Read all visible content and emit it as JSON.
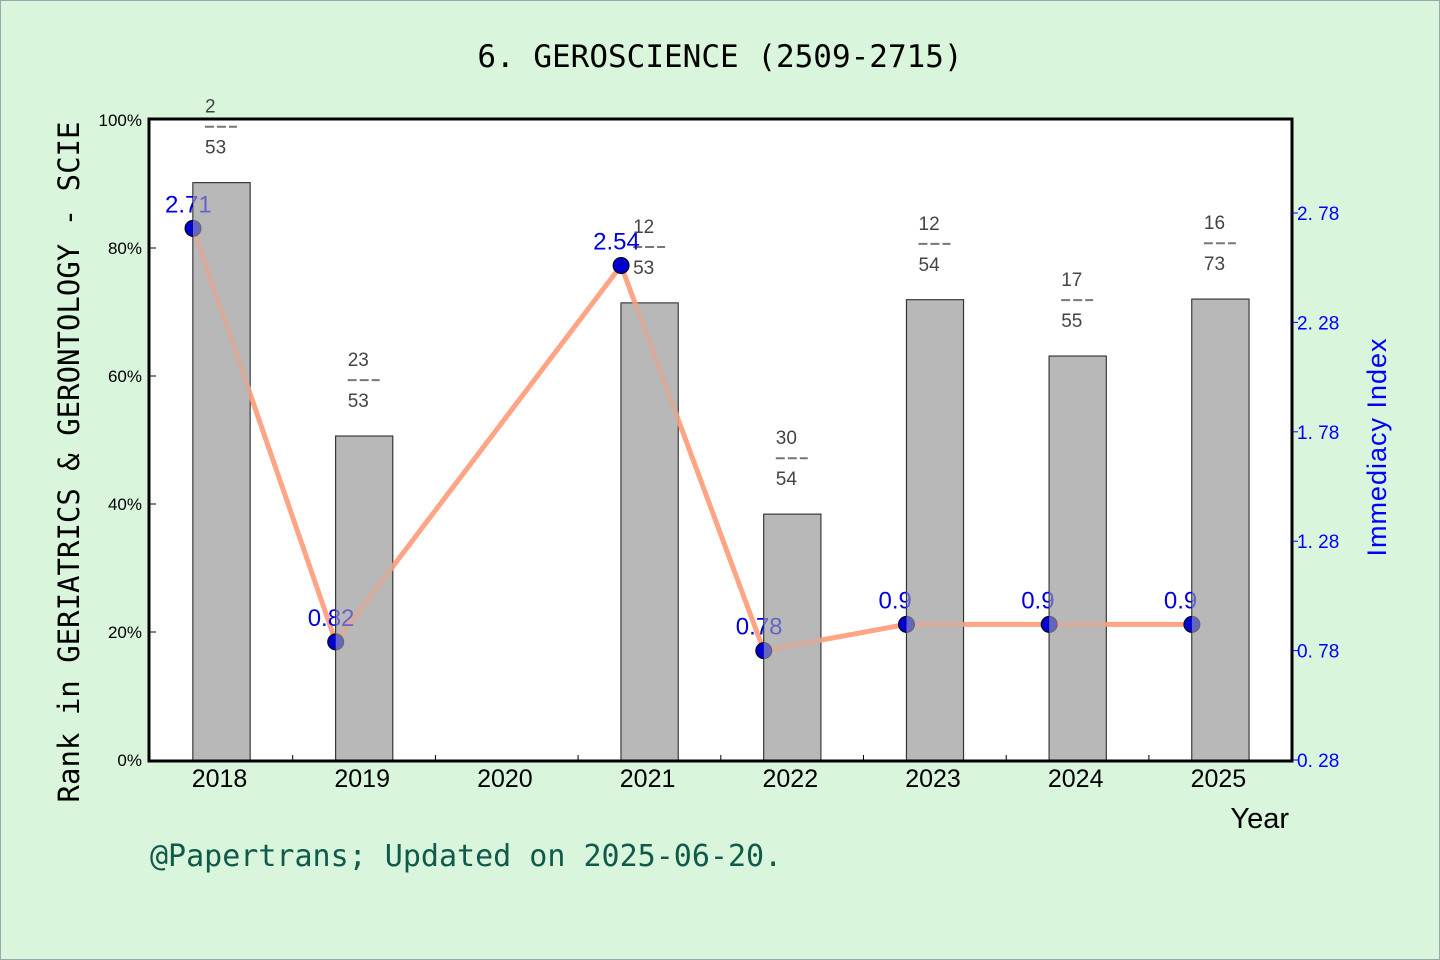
{
  "title": "6. GEROSCIENCE (2509-2715)",
  "footer": "@Papertrans; Updated on 2025-06-20.",
  "colors": {
    "background": "#d9f5dc",
    "bar_fill": "#b8b8b8",
    "line": "#ff9a77",
    "marker": "#0000cc",
    "right_axis": "#0000ff",
    "footer": "#0f5a4a"
  },
  "chart_data": {
    "type": "bar",
    "title": "6. GEROSCIENCE (2509-2715)",
    "xlabel": "Year",
    "ylabel": "Rank in GERIATRICS & GERONTOLOGY - SCIE",
    "y2label": "Immediacy Index",
    "categories": [
      "2018",
      "2019",
      "2020",
      "2021",
      "2022",
      "2023",
      "2024",
      "2025"
    ],
    "ylim": [
      0,
      100
    ],
    "y_ticks": [
      "0%",
      "20%",
      "40%",
      "60%",
      "80%",
      "100%"
    ],
    "y2lim": [
      0.28,
      3.21
    ],
    "y2_ticks": [
      "0.28",
      "0.78",
      "1.28",
      "1.78",
      "2.28",
      "2.78"
    ],
    "grid": false,
    "series": [
      {
        "name": "Rank percentile",
        "type": "bar",
        "values": [
          90.2,
          50.6,
          null,
          71.4,
          38.4,
          71.9,
          63.1,
          72.0
        ],
        "rank_labels": [
          {
            "rank": "2",
            "total": "53"
          },
          {
            "rank": "23",
            "total": "53"
          },
          null,
          {
            "rank": "12",
            "total": "53"
          },
          {
            "rank": "30",
            "total": "54"
          },
          {
            "rank": "12",
            "total": "54"
          },
          {
            "rank": "17",
            "total": "55"
          },
          {
            "rank": "16",
            "total": "73"
          }
        ]
      },
      {
        "name": "Immediacy Index",
        "type": "line",
        "axis": "right",
        "values": [
          2.71,
          0.82,
          null,
          2.54,
          0.78,
          0.9,
          0.9,
          0.9
        ],
        "labels": [
          "2.71",
          "0.82",
          null,
          "2.54",
          "0.78",
          "0.9",
          "0.9",
          "0.9"
        ]
      }
    ]
  }
}
